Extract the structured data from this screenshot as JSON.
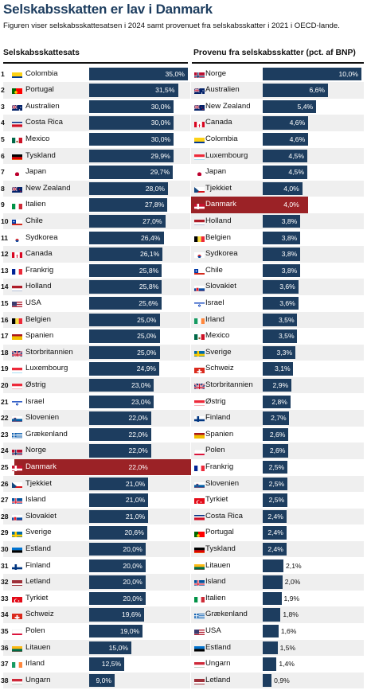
{
  "title": "Selskabsskatten er lav i Danmark",
  "subtitle": "Figuren viser selskabsskattesatsen i 2024 samt provenuet fra selskabsskatter i 2021 i OECD-lande.",
  "colors": {
    "bar": "#1d3d5f",
    "highlight": "#9b2226",
    "stripe": "#efefef"
  },
  "chart_data": [
    {
      "type": "bar",
      "orientation": "horizontal",
      "title": "Selskabsskattesats",
      "unit": "%",
      "xlim": [
        0,
        35
      ],
      "highlight": "Danmark",
      "ranks": [
        "1",
        "2",
        "3",
        "4",
        "5",
        "6",
        "7",
        "8",
        "9",
        "10",
        "11",
        "12",
        "13",
        "14",
        "15",
        "16",
        "17",
        "18",
        "19",
        "20",
        "21",
        "22",
        "23",
        "24",
        "25",
        "26",
        "27",
        "28",
        "29",
        "30",
        "31",
        "32",
        "33",
        "34",
        "35",
        "36",
        "37",
        "38"
      ],
      "categories": [
        "Colombia",
        "Portugal",
        "Australien",
        "Costa Rica",
        "Mexico",
        "Tyskland",
        "Japan",
        "New Zealand",
        "Italien",
        "Chile",
        "Sydkorea",
        "Canada",
        "Frankrig",
        "Holland",
        "USA",
        "Belgien",
        "Spanien",
        "Storbritannien",
        "Luxembourg",
        "Østrig",
        "Israel",
        "Slovenien",
        "Grækenland",
        "Norge",
        "Danmark",
        "Tjekkiet",
        "Island",
        "Slovakiet",
        "Sverige",
        "Estland",
        "Finland",
        "Letland",
        "Tyrkiet",
        "Schweiz",
        "Polen",
        "Litauen",
        "Irland",
        "Ungarn"
      ],
      "values": [
        35.0,
        31.5,
        30.0,
        30.0,
        30.0,
        29.9,
        29.7,
        28.0,
        27.8,
        27.0,
        26.4,
        26.1,
        25.8,
        25.8,
        25.6,
        25.0,
        25.0,
        25.0,
        24.9,
        23.0,
        23.0,
        22.0,
        22.0,
        22.0,
        22.0,
        21.0,
        21.0,
        21.0,
        20.6,
        20.0,
        20.0,
        20.0,
        20.0,
        19.6,
        19.0,
        15.0,
        12.5,
        9.0
      ],
      "labels": [
        "35,0%",
        "31,5%",
        "30,0%",
        "30,0%",
        "30,0%",
        "29,9%",
        "29,7%",
        "28,0%",
        "27,8%",
        "27,0%",
        "26,4%",
        "26,1%",
        "25,8%",
        "25,8%",
        "25,6%",
        "25,0%",
        "25,0%",
        "25,0%",
        "24,9%",
        "23,0%",
        "23,0%",
        "22,0%",
        "22,0%",
        "22,0%",
        "22,0%",
        "21,0%",
        "21,0%",
        "21,0%",
        "20,6%",
        "20,0%",
        "20,0%",
        "20,0%",
        "20,0%",
        "19,6%",
        "19,0%",
        "15,0%",
        "12,5%",
        "9,0%"
      ],
      "flags": [
        "colombia-flag",
        "portugal-flag",
        "australia-flag",
        "costa-rica-flag",
        "mexico-flag",
        "germany-flag",
        "japan-flag",
        "new-zealand-flag",
        "italy-flag",
        "chile-flag",
        "south-korea-flag",
        "canada-flag",
        "france-flag",
        "netherlands-flag",
        "usa-flag",
        "belgium-flag",
        "spain-flag",
        "uk-flag",
        "luxembourg-flag",
        "austria-flag",
        "israel-flag",
        "slovenia-flag",
        "greece-flag",
        "norway-flag",
        "denmark-flag",
        "czechia-flag",
        "iceland-flag",
        "slovakia-flag",
        "sweden-flag",
        "estonia-flag",
        "finland-flag",
        "latvia-flag",
        "turkey-flag",
        "switzerland-flag",
        "poland-flag",
        "lithuania-flag",
        "ireland-flag",
        "hungary-flag"
      ]
    },
    {
      "type": "bar",
      "orientation": "horizontal",
      "title": "Provenu fra selskabsskatter (pct. af BNP)",
      "unit": "%",
      "xlim": [
        0,
        10
      ],
      "highlight": "Danmark",
      "categories": [
        "Norge",
        "Australien",
        "New Zealand",
        "Canada",
        "Colombia",
        "Luxembourg",
        "Japan",
        "Tjekkiet",
        "Danmark",
        "Holland",
        "Belgien",
        "Sydkorea",
        "Chile",
        "Slovakiet",
        "Israel",
        "Irland",
        "Mexico",
        "Sverige",
        "Schweiz",
        "Storbritannien",
        "Østrig",
        "Finland",
        "Spanien",
        "Polen",
        "Frankrig",
        "Slovenien",
        "Tyrkiet",
        "Costa Rica",
        "Portugal",
        "Tyskland",
        "Litauen",
        "Island",
        "Italien",
        "Grækenland",
        "USA",
        "Estland",
        "Ungarn",
        "Letland"
      ],
      "values": [
        10.0,
        6.6,
        5.4,
        4.6,
        4.6,
        4.5,
        4.5,
        4.0,
        4.0,
        3.8,
        3.8,
        3.8,
        3.8,
        3.6,
        3.6,
        3.5,
        3.5,
        3.3,
        3.1,
        2.9,
        2.8,
        2.7,
        2.6,
        2.6,
        2.5,
        2.5,
        2.5,
        2.4,
        2.4,
        2.4,
        2.1,
        2.0,
        1.9,
        1.8,
        1.6,
        1.5,
        1.4,
        0.9
      ],
      "labels": [
        "10,0%",
        "6,6%",
        "5,4%",
        "4,6%",
        "4,6%",
        "4,5%",
        "4,5%",
        "4,0%",
        "4,0%",
        "3,8%",
        "3,8%",
        "3,8%",
        "3,8%",
        "3,6%",
        "3,6%",
        "3,5%",
        "3,5%",
        "3,3%",
        "3,1%",
        "2,9%",
        "2,8%",
        "2,7%",
        "2,6%",
        "2,6%",
        "2,5%",
        "2,5%",
        "2,5%",
        "2,4%",
        "2,4%",
        "2,4%",
        "2,1%",
        "2,0%",
        "1,9%",
        "1,8%",
        "1,6%",
        "1,5%",
        "1,4%",
        "0,9%"
      ],
      "flags": [
        "norway-flag",
        "australia-flag",
        "new-zealand-flag",
        "canada-flag",
        "colombia-flag",
        "luxembourg-flag",
        "japan-flag",
        "czechia-flag",
        "denmark-flag",
        "netherlands-flag",
        "belgium-flag",
        "south-korea-flag",
        "chile-flag",
        "slovakia-flag",
        "israel-flag",
        "ireland-flag",
        "mexico-flag",
        "sweden-flag",
        "switzerland-flag",
        "uk-flag",
        "austria-flag",
        "finland-flag",
        "spain-flag",
        "poland-flag",
        "france-flag",
        "slovenia-flag",
        "turkey-flag",
        "costa-rica-flag",
        "portugal-flag",
        "germany-flag",
        "lithuania-flag",
        "iceland-flag",
        "italy-flag",
        "greece-flag",
        "usa-flag",
        "estonia-flag",
        "hungary-flag",
        "latvia-flag"
      ]
    }
  ]
}
